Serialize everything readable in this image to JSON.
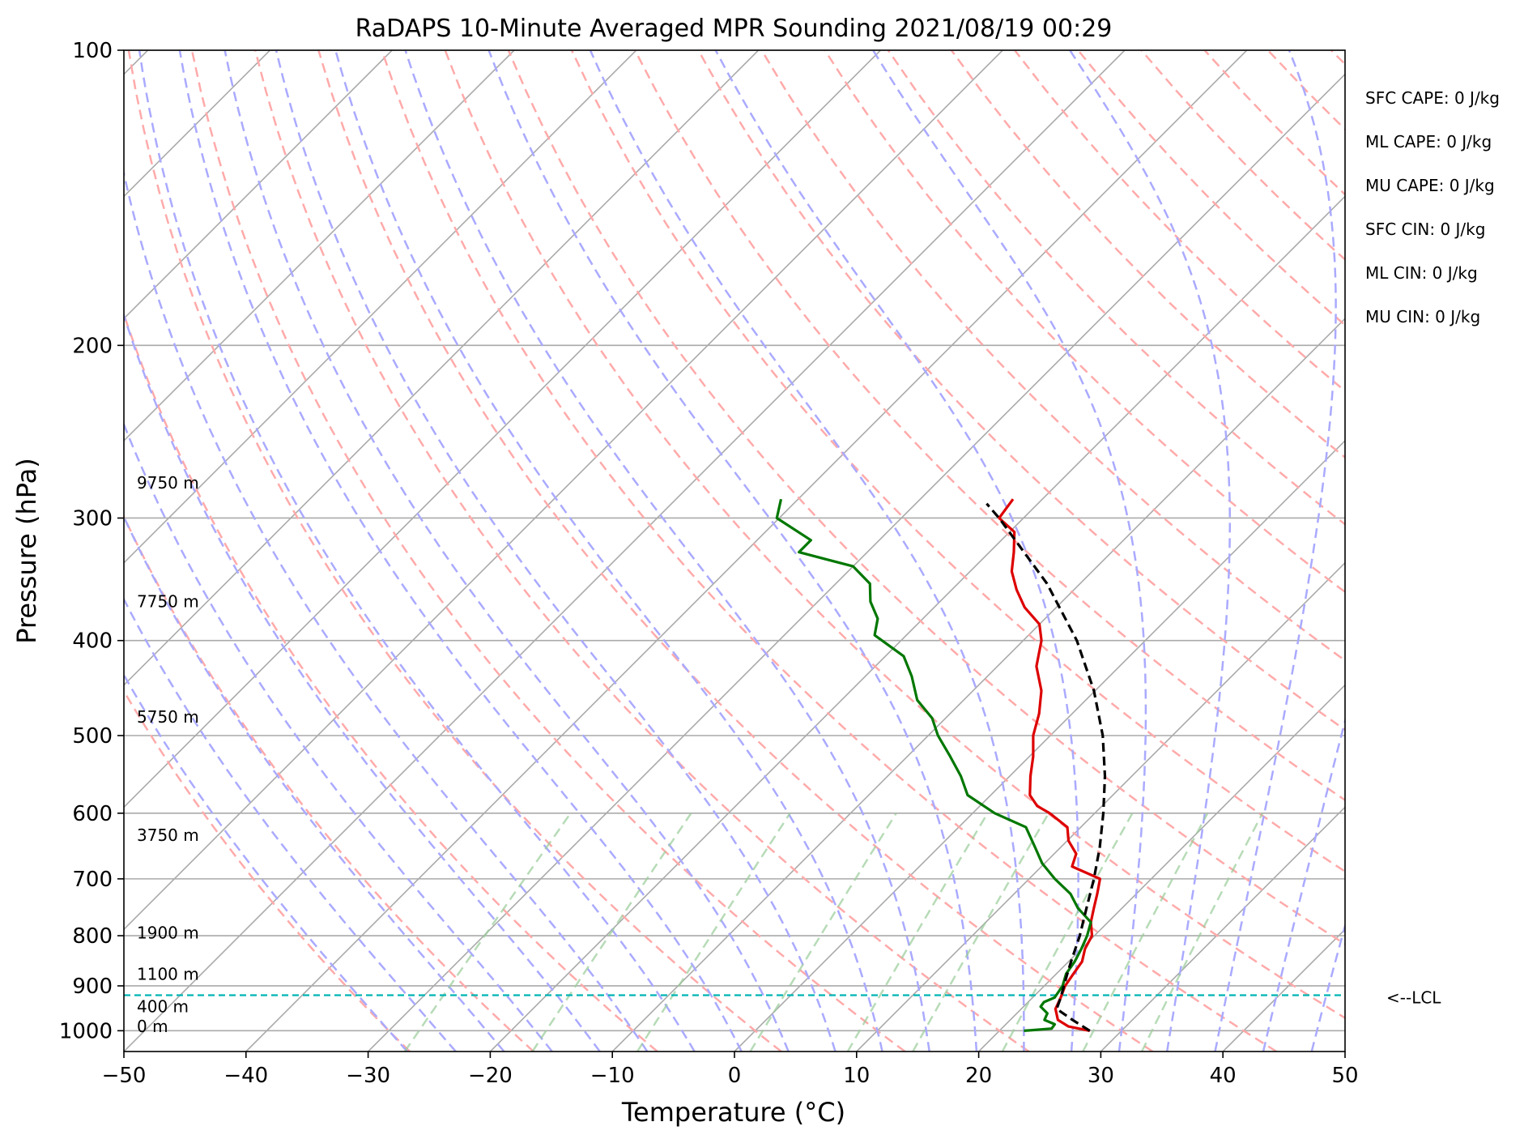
{
  "chart_data": {
    "type": "line",
    "title": "RaDAPS 10-Minute Averaged MPR Sounding 2021/08/19 00:29",
    "xlabel": "Temperature (°C)",
    "ylabel": "Pressure (hPa)",
    "xlim": [
      -50,
      50
    ],
    "ylim": [
      1050,
      100
    ],
    "y_scale": "log",
    "x_ticks": [
      -50,
      -40,
      -30,
      -20,
      -10,
      0,
      10,
      20,
      30,
      40,
      50
    ],
    "x_tick_labels": [
      "−50",
      "−40",
      "−30",
      "−20",
      "−10",
      "0",
      "10",
      "20",
      "30",
      "40",
      "50"
    ],
    "y_ticks": [
      100,
      200,
      300,
      400,
      500,
      600,
      700,
      800,
      900,
      1000
    ],
    "y_tick_labels": [
      "100",
      "200",
      "300",
      "400",
      "500",
      "600",
      "700",
      "800",
      "900",
      "1000"
    ],
    "grid": true,
    "skew": true,
    "series": [
      {
        "color": "#dd0000",
        "points": [
          [
            1000,
            27.4
          ],
          [
            990,
            25.3
          ],
          [
            975,
            23.9
          ],
          [
            950,
            22.8
          ],
          [
            925,
            22.3
          ],
          [
            900,
            21.7
          ],
          [
            875,
            21.4
          ],
          [
            850,
            21.1
          ],
          [
            825,
            20.3
          ],
          [
            800,
            19.8
          ],
          [
            775,
            18.6
          ],
          [
            750,
            17.7
          ],
          [
            725,
            16.8
          ],
          [
            700,
            15.8
          ],
          [
            680,
            12.5
          ],
          [
            660,
            11.8
          ],
          [
            640,
            10.1
          ],
          [
            620,
            8.9
          ],
          [
            600,
            6.3
          ],
          [
            590,
            4.7
          ],
          [
            575,
            3.2
          ],
          [
            550,
            1.7
          ],
          [
            525,
            0.3
          ],
          [
            500,
            -1.4
          ],
          [
            475,
            -2.7
          ],
          [
            450,
            -4.4
          ],
          [
            425,
            -6.8
          ],
          [
            400,
            -8.5
          ],
          [
            385,
            -10.0
          ],
          [
            370,
            -12.6
          ],
          [
            355,
            -14.7
          ],
          [
            340,
            -16.6
          ],
          [
            325,
            -18.0
          ],
          [
            310,
            -19.6
          ],
          [
            300,
            -22.0
          ],
          [
            287,
            -22.4
          ]
        ]
      },
      {
        "color": "#007700",
        "points": [
          [
            1000,
            22.0
          ],
          [
            995,
            24.1
          ],
          [
            985,
            24.0
          ],
          [
            975,
            22.8
          ],
          [
            960,
            22.5
          ],
          [
            945,
            21.4
          ],
          [
            935,
            21.3
          ],
          [
            925,
            21.8
          ],
          [
            900,
            21.5
          ],
          [
            875,
            20.8
          ],
          [
            850,
            20.5
          ],
          [
            825,
            20.0
          ],
          [
            800,
            19.4
          ],
          [
            775,
            18.6
          ],
          [
            750,
            16.4
          ],
          [
            725,
            14.6
          ],
          [
            700,
            12.1
          ],
          [
            675,
            9.8
          ],
          [
            650,
            7.9
          ],
          [
            620,
            5.5
          ],
          [
            600,
            1.8
          ],
          [
            575,
            -1.9
          ],
          [
            550,
            -4.0
          ],
          [
            525,
            -6.5
          ],
          [
            500,
            -9.2
          ],
          [
            480,
            -11.1
          ],
          [
            460,
            -13.8
          ],
          [
            435,
            -16.2
          ],
          [
            415,
            -18.5
          ],
          [
            395,
            -22.6
          ],
          [
            380,
            -23.7
          ],
          [
            365,
            -25.7
          ],
          [
            350,
            -27.2
          ],
          [
            336,
            -30.0
          ],
          [
            325,
            -35.6
          ],
          [
            316,
            -35.6
          ],
          [
            300,
            -40.2
          ],
          [
            287,
            -41.4
          ]
        ]
      },
      {
        "color": "#000000",
        "dashed": true,
        "points": [
          [
            1000,
            27.4
          ],
          [
            975,
            25.1
          ],
          [
            950,
            22.9
          ],
          [
            925,
            22.3
          ],
          [
            900,
            21.6
          ],
          [
            875,
            20.9
          ],
          [
            850,
            20.2
          ],
          [
            800,
            18.8
          ],
          [
            750,
            17.1
          ],
          [
            700,
            15.3
          ],
          [
            650,
            13.2
          ],
          [
            600,
            10.7
          ],
          [
            550,
            7.8
          ],
          [
            500,
            4.3
          ],
          [
            450,
            -0.1
          ],
          [
            400,
            -5.6
          ],
          [
            350,
            -12.7
          ],
          [
            300,
            -22.0
          ],
          [
            290,
            -24.2
          ]
        ]
      }
    ],
    "height_labels": [
      {
        "text": "9750 m",
        "p": 280
      },
      {
        "text": "7750 m",
        "p": 370
      },
      {
        "text": "5750 m",
        "p": 485
      },
      {
        "text": "3750 m",
        "p": 640
      },
      {
        "text": "1900 m",
        "p": 805
      },
      {
        "text": "1100 m",
        "p": 887
      },
      {
        "text": "400 m",
        "p": 957
      },
      {
        "text": "0 m",
        "p": 1003
      }
    ],
    "lcl": {
      "p": 920,
      "label": "<--LCL",
      "color": "#00b3b3"
    },
    "indices": [
      "SFC CAPE: 0 J/kg",
      "ML CAPE: 0 J/kg",
      "MU CAPE: 0 J/kg",
      "SFC CIN: 0 J/kg",
      "ML CIN: 0 J/kg",
      "MU CIN: 0 J/kg"
    ],
    "colors": {
      "grid": "#aaaaaa",
      "dry_adiabats": "#ffaaaa",
      "moist_adiabats": "#aaaaff",
      "mixing_ratio": "#99cc99"
    }
  }
}
